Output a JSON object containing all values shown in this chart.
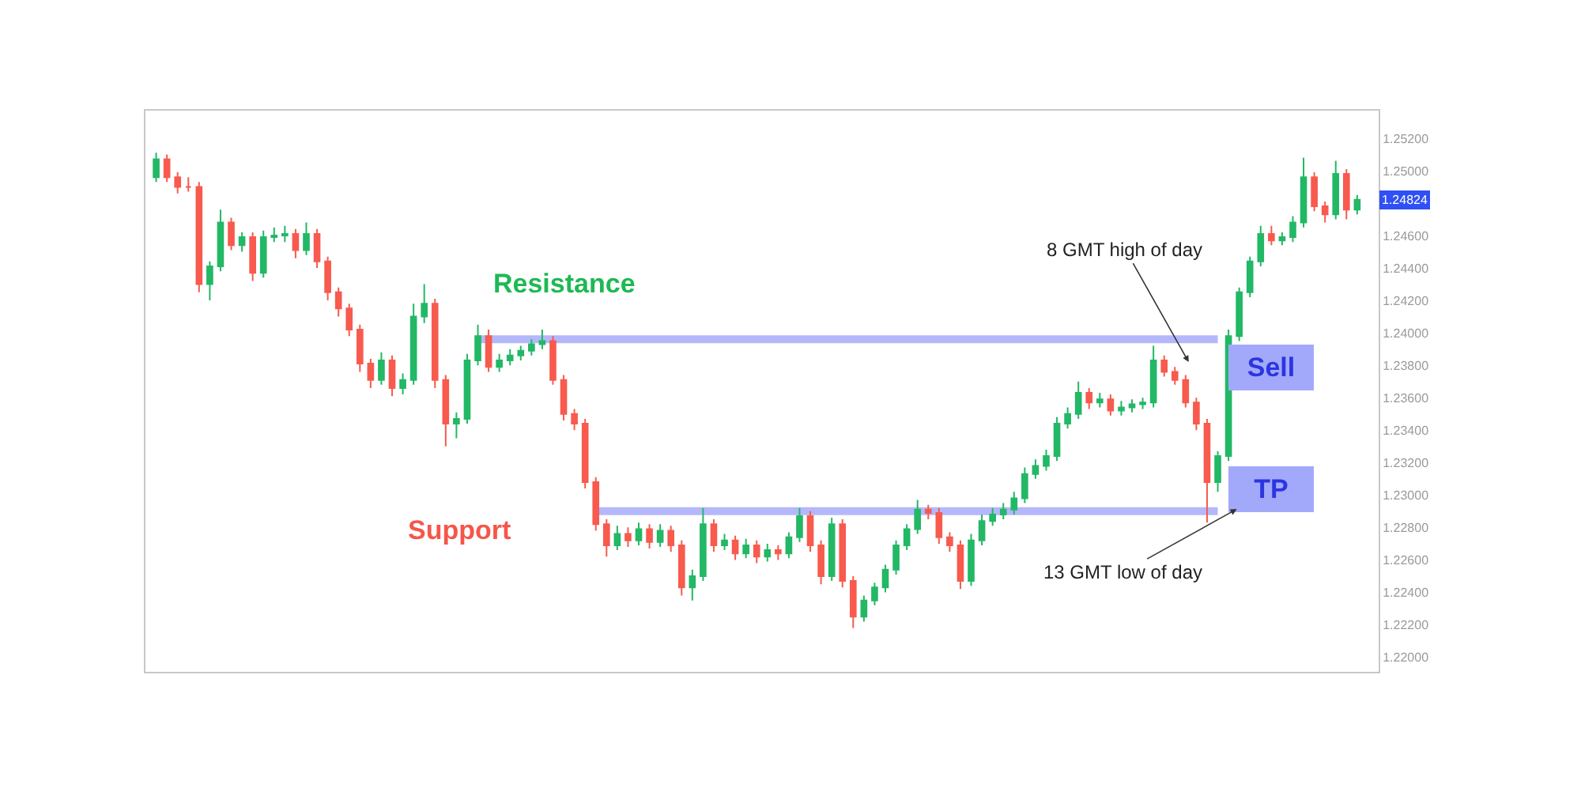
{
  "chart_data": {
    "type": "candlestick",
    "categories": [
      null,
      null,
      null,
      null,
      null,
      null,
      null,
      null,
      null,
      null,
      null,
      null,
      null,
      null,
      null,
      null,
      null,
      null,
      null,
      null,
      null,
      null,
      null,
      null,
      null,
      null,
      null,
      null,
      null,
      null,
      null,
      null,
      null,
      null,
      null,
      null,
      null,
      null,
      null,
      null,
      null,
      null,
      null,
      null,
      null,
      null,
      null,
      null,
      null,
      null,
      null,
      null,
      null,
      null,
      null,
      null,
      null,
      null,
      null,
      null,
      null,
      null,
      null,
      null,
      null,
      null,
      null,
      null,
      null,
      null,
      null,
      null,
      null,
      null,
      null,
      null,
      null,
      null,
      null,
      null,
      null,
      null,
      null,
      null,
      null,
      null,
      null,
      null,
      null,
      null,
      null,
      null,
      null,
      null,
      null,
      null,
      null,
      null,
      null,
      null,
      null,
      null,
      null,
      null,
      null,
      null,
      null,
      null,
      null,
      null,
      null,
      null,
      null
    ],
    "ohlc": [
      [
        1.2496,
        1.2511,
        1.2493,
        1.2507
      ],
      [
        1.2507,
        1.251,
        1.2493,
        1.2496
      ],
      [
        1.2496,
        1.2499,
        1.2486,
        1.249
      ],
      [
        1.249,
        1.2496,
        1.2487,
        1.249
      ],
      [
        1.249,
        1.2493,
        1.2425,
        1.243
      ],
      [
        1.243,
        1.2444,
        1.242,
        1.2441
      ],
      [
        1.2441,
        1.2476,
        1.2438,
        1.2468
      ],
      [
        1.2468,
        1.2471,
        1.2451,
        1.2454
      ],
      [
        1.2454,
        1.2462,
        1.245,
        1.2459
      ],
      [
        1.2459,
        1.2462,
        1.2432,
        1.2437
      ],
      [
        1.2437,
        1.2463,
        1.2434,
        1.2459
      ],
      [
        1.2459,
        1.2465,
        1.2456,
        1.246
      ],
      [
        1.246,
        1.2466,
        1.2456,
        1.2461
      ],
      [
        1.2461,
        1.2464,
        1.2446,
        1.2451
      ],
      [
        1.2451,
        1.2468,
        1.2448,
        1.2461
      ],
      [
        1.2461,
        1.2464,
        1.244,
        1.2444
      ],
      [
        1.2444,
        1.2447,
        1.242,
        1.2425
      ],
      [
        1.2425,
        1.2428,
        1.241,
        1.2415
      ],
      [
        1.2415,
        1.2418,
        1.2398,
        1.2402
      ],
      [
        1.2402,
        1.2405,
        1.2376,
        1.2381
      ],
      [
        1.2381,
        1.2384,
        1.2366,
        1.2371
      ],
      [
        1.2371,
        1.2388,
        1.2368,
        1.2383
      ],
      [
        1.2383,
        1.2386,
        1.2361,
        1.2366
      ],
      [
        1.2366,
        1.2375,
        1.2362,
        1.2371
      ],
      [
        1.2371,
        1.2418,
        1.2368,
        1.241
      ],
      [
        1.241,
        1.243,
        1.2406,
        1.2418
      ],
      [
        1.2418,
        1.2421,
        1.2366,
        1.2371
      ],
      [
        1.2371,
        1.2374,
        1.233,
        1.2344
      ],
      [
        1.2344,
        1.2351,
        1.2335,
        1.2347
      ],
      [
        1.2347,
        1.2387,
        1.2344,
        1.2383
      ],
      [
        1.2383,
        1.2405,
        1.238,
        1.2398
      ],
      [
        1.2398,
        1.2402,
        1.2376,
        1.2379
      ],
      [
        1.2379,
        1.2387,
        1.2376,
        1.2383
      ],
      [
        1.2383,
        1.239,
        1.238,
        1.2386
      ],
      [
        1.2386,
        1.2392,
        1.2383,
        1.2389
      ],
      [
        1.2389,
        1.2396,
        1.2386,
        1.2393
      ],
      [
        1.2393,
        1.2402,
        1.239,
        1.2395
      ],
      [
        1.2395,
        1.2398,
        1.2368,
        1.2371
      ],
      [
        1.2371,
        1.2374,
        1.2346,
        1.235
      ],
      [
        1.235,
        1.2353,
        1.234,
        1.2344
      ],
      [
        1.2344,
        1.2347,
        1.2304,
        1.2308
      ],
      [
        1.2308,
        1.2311,
        1.2278,
        1.2282
      ],
      [
        1.2282,
        1.2285,
        1.2262,
        1.2269
      ],
      [
        1.2269,
        1.2281,
        1.2266,
        1.2276
      ],
      [
        1.2276,
        1.228,
        1.2268,
        1.2272
      ],
      [
        1.2272,
        1.2283,
        1.2269,
        1.2279
      ],
      [
        1.2279,
        1.2282,
        1.2267,
        1.2271
      ],
      [
        1.2271,
        1.2282,
        1.2268,
        1.2278
      ],
      [
        1.2278,
        1.2281,
        1.2265,
        1.2269
      ],
      [
        1.2269,
        1.2272,
        1.2238,
        1.2243
      ],
      [
        1.2243,
        1.2254,
        1.2235,
        1.225
      ],
      [
        1.225,
        1.2292,
        1.2247,
        1.2282
      ],
      [
        1.2282,
        1.2285,
        1.2265,
        1.2269
      ],
      [
        1.2269,
        1.2276,
        1.2266,
        1.2272
      ],
      [
        1.2272,
        1.2275,
        1.226,
        1.2264
      ],
      [
        1.2264,
        1.2273,
        1.2261,
        1.2269
      ],
      [
        1.2269,
        1.2272,
        1.2258,
        1.2262
      ],
      [
        1.2262,
        1.227,
        1.2259,
        1.2266
      ],
      [
        1.2266,
        1.2269,
        1.226,
        1.2264
      ],
      [
        1.2264,
        1.2277,
        1.2261,
        1.2274
      ],
      [
        1.2274,
        1.2292,
        1.2271,
        1.2287
      ],
      [
        1.2287,
        1.229,
        1.2265,
        1.2269
      ],
      [
        1.2269,
        1.2272,
        1.2245,
        1.225
      ],
      [
        1.225,
        1.2286,
        1.2247,
        1.2282
      ],
      [
        1.2282,
        1.2285,
        1.2243,
        1.2247
      ],
      [
        1.2247,
        1.225,
        1.2218,
        1.2225
      ],
      [
        1.2225,
        1.2238,
        1.2222,
        1.2235
      ],
      [
        1.2235,
        1.2246,
        1.2232,
        1.2243
      ],
      [
        1.2243,
        1.2257,
        1.224,
        1.2254
      ],
      [
        1.2254,
        1.2272,
        1.2251,
        1.2269
      ],
      [
        1.2269,
        1.2282,
        1.2266,
        1.2279
      ],
      [
        1.2279,
        1.2297,
        1.2276,
        1.2291
      ],
      [
        1.2291,
        1.2294,
        1.2285,
        1.2289
      ],
      [
        1.2289,
        1.2292,
        1.227,
        1.2274
      ],
      [
        1.2274,
        1.2277,
        1.2265,
        1.2269
      ],
      [
        1.2269,
        1.2272,
        1.2242,
        1.2247
      ],
      [
        1.2247,
        1.2276,
        1.2244,
        1.2272
      ],
      [
        1.2272,
        1.2288,
        1.2269,
        1.2284
      ],
      [
        1.2284,
        1.2292,
        1.2281,
        1.2288
      ],
      [
        1.2288,
        1.2295,
        1.2285,
        1.2291
      ],
      [
        1.2291,
        1.2302,
        1.2288,
        1.2298
      ],
      [
        1.2298,
        1.2317,
        1.2295,
        1.2313
      ],
      [
        1.2313,
        1.2322,
        1.231,
        1.2318
      ],
      [
        1.2318,
        1.2328,
        1.2315,
        1.2324
      ],
      [
        1.2324,
        1.2348,
        1.2321,
        1.2344
      ],
      [
        1.2344,
        1.2354,
        1.2341,
        1.235
      ],
      [
        1.235,
        1.237,
        1.2347,
        1.2363
      ],
      [
        1.2363,
        1.2366,
        1.2353,
        1.2357
      ],
      [
        1.2357,
        1.2363,
        1.2354,
        1.2359
      ],
      [
        1.2359,
        1.2362,
        1.2349,
        1.2352
      ],
      [
        1.2352,
        1.2358,
        1.2349,
        1.2354
      ],
      [
        1.2354,
        1.2359,
        1.2351,
        1.2356
      ],
      [
        1.2356,
        1.236,
        1.2353,
        1.2357
      ],
      [
        1.2357,
        1.2392,
        1.2354,
        1.2383
      ],
      [
        1.2383,
        1.2386,
        1.2373,
        1.2376
      ],
      [
        1.2376,
        1.2379,
        1.2368,
        1.2371
      ],
      [
        1.2371,
        1.2374,
        1.2354,
        1.2357
      ],
      [
        1.2357,
        1.236,
        1.234,
        1.2344
      ],
      [
        1.2344,
        1.2347,
        1.2283,
        1.2308
      ],
      [
        1.2308,
        1.2327,
        1.2302,
        1.2324
      ],
      [
        1.2324,
        1.2402,
        1.2321,
        1.2398
      ],
      [
        1.2398,
        1.2428,
        1.2395,
        1.2425
      ],
      [
        1.2425,
        1.2447,
        1.2422,
        1.2444
      ],
      [
        1.2444,
        1.2466,
        1.2441,
        1.2461
      ],
      [
        1.2461,
        1.2466,
        1.2454,
        1.2457
      ],
      [
        1.2457,
        1.2462,
        1.2454,
        1.2459
      ],
      [
        1.2459,
        1.2472,
        1.2456,
        1.2468
      ],
      [
        1.2468,
        1.2508,
        1.2465,
        1.2496
      ],
      [
        1.2496,
        1.2499,
        1.2475,
        1.2478
      ],
      [
        1.2478,
        1.2481,
        1.2468,
        1.2473
      ],
      [
        1.2473,
        1.2506,
        1.247,
        1.2498
      ],
      [
        1.2498,
        1.2501,
        1.247,
        1.2476
      ],
      [
        1.2476,
        1.2485,
        1.2473,
        1.2482
      ]
    ],
    "colors": [
      "#22b866",
      "#f85a4e",
      "#f85a4e",
      "#f85a4e",
      "#f85a4e",
      "#22b866",
      "#22b866",
      "#f85a4e",
      "#22b866",
      "#f85a4e",
      "#22b866",
      "#22b866",
      "#22b866",
      "#f85a4e",
      "#22b866",
      "#f85a4e",
      "#f85a4e",
      "#f85a4e",
      "#f85a4e",
      "#f85a4e",
      "#f85a4e",
      "#22b866",
      "#f85a4e",
      "#22b866",
      "#22b866",
      "#22b866",
      "#f85a4e",
      "#f85a4e",
      "#22b866",
      "#22b866",
      "#22b866",
      "#f85a4e",
      "#22b866",
      "#22b866",
      "#22b866",
      "#22b866",
      "#22b866",
      "#f85a4e",
      "#f85a4e",
      "#f85a4e",
      "#f85a4e",
      "#f85a4e",
      "#f85a4e",
      "#22b866",
      "#f85a4e",
      "#22b866",
      "#f85a4e",
      "#22b866",
      "#f85a4e",
      "#f85a4e",
      "#22b866",
      "#22b866",
      "#f85a4e",
      "#22b866",
      "#f85a4e",
      "#22b866",
      "#f85a4e",
      "#22b866",
      "#f85a4e",
      "#22b866",
      "#22b866",
      "#f85a4e",
      "#f85a4e",
      "#22b866",
      "#f85a4e",
      "#f85a4e",
      "#22b866",
      "#22b866",
      "#22b866",
      "#22b866",
      "#22b866",
      "#22b866",
      "#f85a4e",
      "#f85a4e",
      "#f85a4e",
      "#f85a4e",
      "#22b866",
      "#22b866",
      "#22b866",
      "#22b866",
      "#22b866",
      "#22b866",
      "#22b866",
      "#22b866",
      "#22b866",
      "#22b866",
      "#22b866",
      "#f85a4e",
      "#22b866",
      "#f85a4e",
      "#22b866",
      "#22b866",
      "#22b866",
      "#22b866",
      "#f85a4e",
      "#f85a4e",
      "#f85a4e",
      "#f85a4e",
      "#f85a4e",
      "#22b866",
      "#22b866",
      "#22b866",
      "#22b866",
      "#22b866",
      "#f85a4e",
      "#22b866",
      "#22b866",
      "#22b866",
      "#f85a4e",
      "#f85a4e",
      "#22b866",
      "#f85a4e",
      "#22b866"
    ],
    "ylim": [
      1.2191,
      1.2537
    ],
    "yticks": [
      {
        "value": 1.22,
        "label": "1.22000"
      },
      {
        "value": 1.222,
        "label": "1.22200"
      },
      {
        "value": 1.224,
        "label": "1.22400"
      },
      {
        "value": 1.226,
        "label": "1.22600"
      },
      {
        "value": 1.228,
        "label": "1.22800"
      },
      {
        "value": 1.23,
        "label": "1.23000"
      },
      {
        "value": 1.232,
        "label": "1.23200"
      },
      {
        "value": 1.234,
        "label": "1.23400"
      },
      {
        "value": 1.236,
        "label": "1.23600"
      },
      {
        "value": 1.238,
        "label": "1.23800"
      },
      {
        "value": 1.24,
        "label": "1.24000"
      },
      {
        "value": 1.242,
        "label": "1.24200"
      },
      {
        "value": 1.244,
        "label": "1.24400"
      },
      {
        "value": 1.246,
        "label": "1.24600"
      },
      {
        "value": 1.25,
        "label": "1.25000"
      },
      {
        "value": 1.252,
        "label": "1.25200"
      }
    ],
    "ref_lines": [
      {
        "axis": "y",
        "value": 1.2396,
        "color": "#b4b8fb"
      },
      {
        "axis": "y",
        "value": 1.229,
        "color": "#b4b8fb"
      }
    ],
    "annotations": [
      "Resistance",
      "Support",
      "Sell",
      "TP",
      "8 GMT high of day",
      "13 GMT low of day",
      {
        "text": "1.24824",
        "y": 1.24824
      }
    ],
    "tick_labels": "y",
    "grid": false
  }
}
